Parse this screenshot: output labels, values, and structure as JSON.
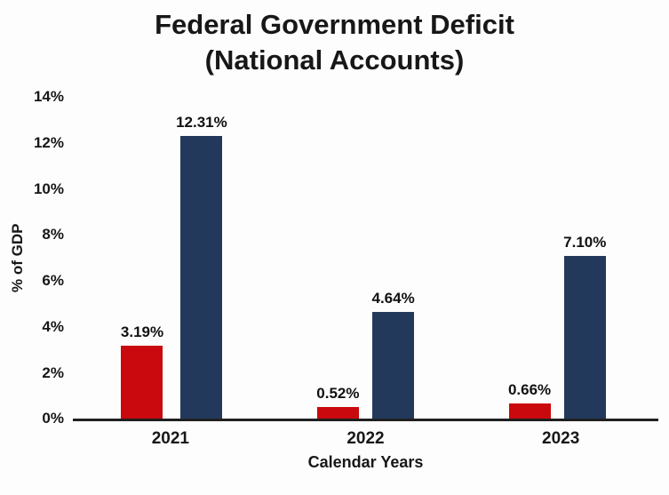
{
  "title": {
    "line1": "Federal Government Deficit",
    "line2": "(National Accounts)"
  },
  "chart_data": {
    "type": "bar",
    "title": "Federal Government Deficit (National Accounts)",
    "categories": [
      "2021",
      "2022",
      "2023"
    ],
    "series": [
      {
        "name": "deficit-red",
        "color": "#c9090d",
        "values": [
          3.19,
          0.52,
          0.66
        ],
        "labels": [
          "3.19%",
          "0.52%",
          "0.66%"
        ]
      },
      {
        "name": "deficit-navy",
        "color": "#22395c",
        "values": [
          12.31,
          4.64,
          7.1
        ],
        "labels": [
          "12.31%",
          "4.64%",
          "7.10%"
        ]
      }
    ],
    "xlabel": "Calendar Years",
    "ylabel": "%  of GDP",
    "ylim": [
      0,
      14
    ],
    "ytick_labels": [
      "0%",
      "2%",
      "4%",
      "6%",
      "8%",
      "10%",
      "12%",
      "14%"
    ],
    "grid": false,
    "legend_position": "none",
    "data_labels_shown": true
  }
}
